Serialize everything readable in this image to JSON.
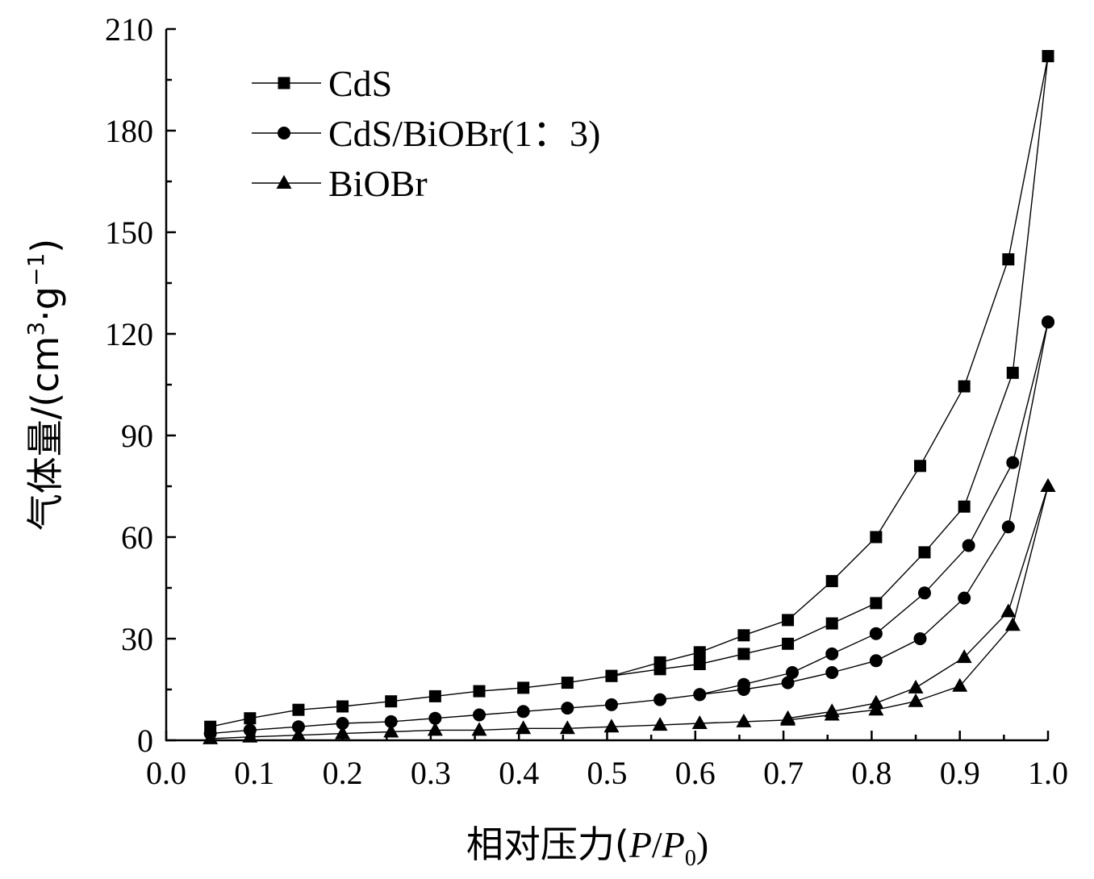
{
  "chart_data": {
    "type": "line",
    "xlabel": {
      "prefix": "相对压力(",
      "p": "P",
      "slash": "/",
      "p0_base": "P",
      "p0_sub": "0",
      "suffix": ")"
    },
    "ylabel": {
      "main": "气体量/(cm",
      "sup1": "3",
      "mid": "·g",
      "sup2": "−1",
      "end": ")"
    },
    "xlim": [
      0.0,
      1.0
    ],
    "ylim": [
      0,
      210
    ],
    "xticks": [
      "0.0",
      "0.1",
      "0.2",
      "0.3",
      "0.4",
      "0.5",
      "0.6",
      "0.7",
      "0.8",
      "0.9",
      "1.0"
    ],
    "yticks": [
      "0",
      "30",
      "60",
      "90",
      "120",
      "150",
      "180",
      "210"
    ],
    "legend_position": "top-left",
    "series": [
      {
        "name": "CdS",
        "marker": "square",
        "adsorption": [
          [
            0.05,
            4
          ],
          [
            0.095,
            6.5
          ],
          [
            0.15,
            9
          ],
          [
            0.2,
            10
          ],
          [
            0.255,
            11.5
          ],
          [
            0.305,
            13
          ],
          [
            0.355,
            14.5
          ],
          [
            0.405,
            15.5
          ],
          [
            0.455,
            17
          ],
          [
            0.505,
            19
          ],
          [
            0.56,
            21
          ],
          [
            0.605,
            22.5
          ],
          [
            0.655,
            25.5
          ],
          [
            0.705,
            28.5
          ],
          [
            0.755,
            34.5
          ],
          [
            0.805,
            40.5
          ],
          [
            0.86,
            55.5
          ],
          [
            0.905,
            69
          ],
          [
            0.96,
            108.5
          ],
          [
            1.0,
            202
          ]
        ],
        "desorption": [
          [
            1.0,
            202
          ],
          [
            0.955,
            142
          ],
          [
            0.905,
            104.5
          ],
          [
            0.855,
            81
          ],
          [
            0.805,
            60
          ],
          [
            0.755,
            47
          ],
          [
            0.705,
            35.5
          ],
          [
            0.655,
            31
          ],
          [
            0.605,
            26
          ],
          [
            0.56,
            23
          ],
          [
            0.505,
            19
          ]
        ]
      },
      {
        "name": "CdS/BiOBr(1：3)",
        "marker": "circle",
        "adsorption": [
          [
            0.05,
            2
          ],
          [
            0.095,
            3
          ],
          [
            0.15,
            4
          ],
          [
            0.2,
            5
          ],
          [
            0.255,
            5.5
          ],
          [
            0.305,
            6.5
          ],
          [
            0.355,
            7.5
          ],
          [
            0.405,
            8.5
          ],
          [
            0.455,
            9.5
          ],
          [
            0.505,
            10.5
          ],
          [
            0.56,
            12
          ],
          [
            0.605,
            13.5
          ],
          [
            0.655,
            15
          ],
          [
            0.705,
            17
          ],
          [
            0.755,
            20
          ],
          [
            0.805,
            23.5
          ],
          [
            0.855,
            30
          ],
          [
            0.905,
            42
          ],
          [
            0.955,
            63
          ],
          [
            1.0,
            123.5
          ]
        ],
        "desorption": [
          [
            1.0,
            123.5
          ],
          [
            0.96,
            82
          ],
          [
            0.91,
            57.5
          ],
          [
            0.86,
            43.5
          ],
          [
            0.805,
            31.5
          ],
          [
            0.755,
            25.5
          ],
          [
            0.71,
            20
          ],
          [
            0.655,
            16.5
          ],
          [
            0.605,
            13.5
          ]
        ]
      },
      {
        "name": "BiOBr",
        "marker": "triangle",
        "adsorption": [
          [
            0.05,
            0.5
          ],
          [
            0.095,
            1
          ],
          [
            0.15,
            1.5
          ],
          [
            0.2,
            2
          ],
          [
            0.255,
            2.5
          ],
          [
            0.305,
            3
          ],
          [
            0.355,
            3
          ],
          [
            0.405,
            3.5
          ],
          [
            0.455,
            3.5
          ],
          [
            0.505,
            4
          ],
          [
            0.56,
            4.5
          ],
          [
            0.605,
            5
          ],
          [
            0.655,
            5.5
          ],
          [
            0.705,
            6
          ],
          [
            0.755,
            7.5
          ],
          [
            0.805,
            9
          ],
          [
            0.85,
            11.5
          ],
          [
            0.9,
            16
          ],
          [
            0.96,
            34
          ],
          [
            1.0,
            75
          ]
        ],
        "desorption": [
          [
            1.0,
            75
          ],
          [
            0.955,
            38
          ],
          [
            0.905,
            24.5
          ],
          [
            0.85,
            15.5
          ],
          [
            0.805,
            11
          ],
          [
            0.755,
            8.5
          ],
          [
            0.705,
            6.5
          ]
        ]
      }
    ]
  }
}
